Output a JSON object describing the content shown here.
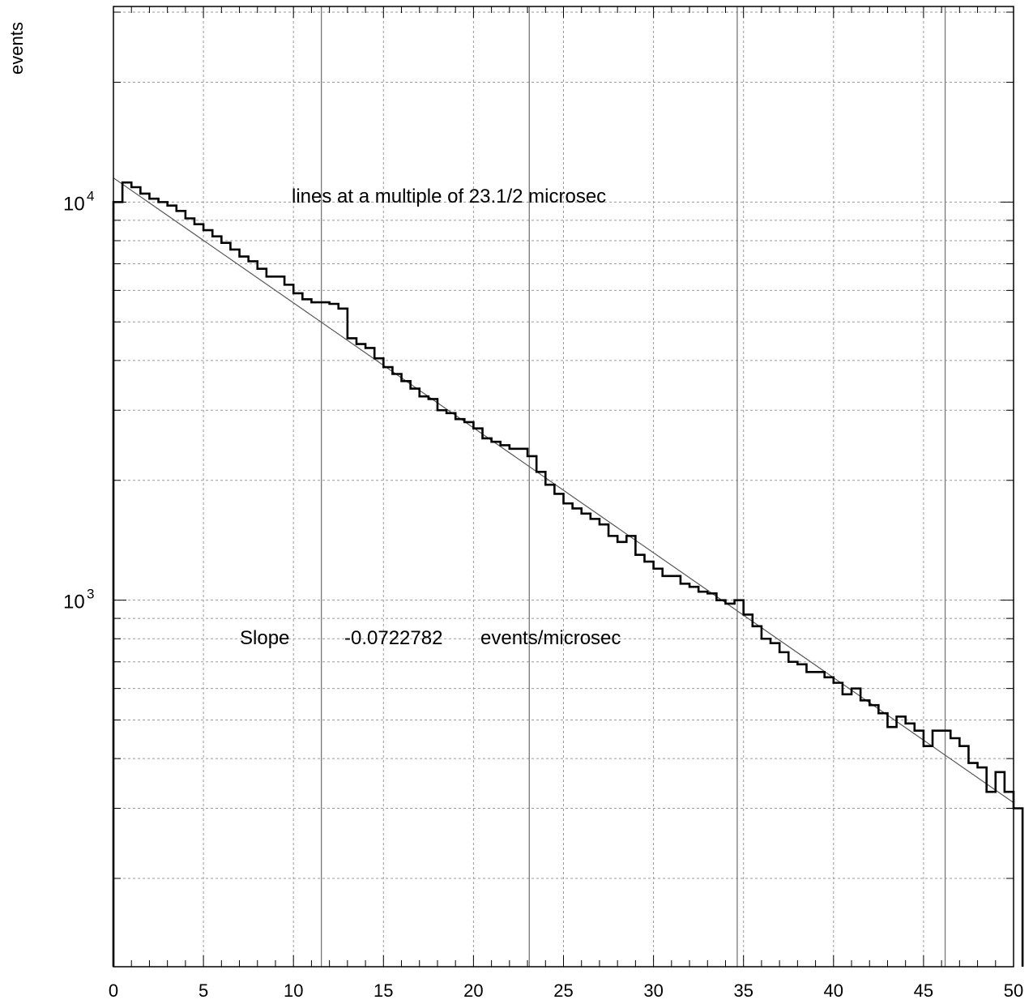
{
  "chart_data": {
    "type": "line",
    "ylabel": "events",
    "xlabel": "",
    "xlim": [
      0,
      50
    ],
    "ylim": [
      120,
      31000
    ],
    "y_scale": "log",
    "grid": true,
    "x_ticks": [
      "0",
      "5",
      "10",
      "15",
      "20",
      "25",
      "30",
      "35",
      "40",
      "45",
      "50"
    ],
    "y_ticks": [
      {
        "base": "10",
        "exp": "3",
        "value": 1000
      },
      {
        "base": "10",
        "exp": "4",
        "value": 10000
      }
    ],
    "annotations": {
      "lines_text": "lines at a multiple of 23.1/2 microsec",
      "slope_label": "Slope",
      "slope_value": "-0.0722782",
      "slope_unit": "events/microsec"
    },
    "reference_lines_x": [
      11.55,
      23.1,
      34.65,
      46.2
    ],
    "fit": {
      "slope": -0.0722782,
      "x": [
        0,
        50
      ],
      "y": [
        11500,
        310
      ]
    },
    "histogram": {
      "bin_width": 0.5,
      "x_start": 0,
      "values": [
        10000,
        11200,
        10900,
        10500,
        10200,
        10000,
        9800,
        9500,
        9100,
        8800,
        8500,
        8200,
        7900,
        7600,
        7300,
        7100,
        6800,
        6500,
        6500,
        6200,
        5900,
        5700,
        5600,
        5600,
        5550,
        5400,
        4550,
        4400,
        4300,
        4050,
        3850,
        3700,
        3550,
        3400,
        3250,
        3200,
        3000,
        2950,
        2850,
        2800,
        2700,
        2550,
        2500,
        2450,
        2400,
        2400,
        2300,
        2100,
        1950,
        1850,
        1750,
        1700,
        1650,
        1600,
        1550,
        1450,
        1400,
        1450,
        1300,
        1250,
        1200,
        1150,
        1150,
        1100,
        1080,
        1050,
        1040,
        1000,
        980,
        1000,
        920,
        860,
        800,
        780,
        740,
        700,
        690,
        660,
        660,
        640,
        620,
        580,
        600,
        560,
        545,
        520,
        480,
        510,
        490,
        470,
        430,
        470,
        470,
        450,
        430,
        390,
        380,
        330,
        370,
        330,
        300
      ]
    }
  }
}
